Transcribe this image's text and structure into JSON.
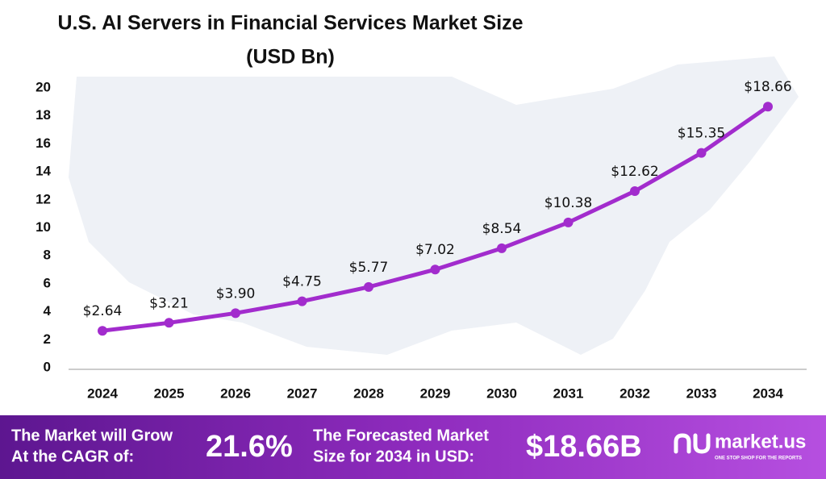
{
  "chart_data": {
    "type": "line",
    "title": "U.S. AI Servers in Financial Services Market Size",
    "subtitle": "(USD Bn)",
    "categories": [
      "2024",
      "2025",
      "2026",
      "2027",
      "2028",
      "2029",
      "2030",
      "2031",
      "2032",
      "2033",
      "2034"
    ],
    "values": [
      2.64,
      3.21,
      3.9,
      4.75,
      5.77,
      7.02,
      8.54,
      10.38,
      12.62,
      15.35,
      18.66
    ],
    "value_labels": [
      "$2.64",
      "$3.21",
      "$3.90",
      "$4.75",
      "$5.77",
      "$7.02",
      "$8.54",
      "$10.38",
      "$12.62",
      "$15.35",
      "$18.66"
    ],
    "color": "#a22ccd",
    "ylim": [
      0,
      20
    ],
    "yticks": [
      0,
      2,
      4,
      6,
      8,
      10,
      12,
      14,
      16,
      18,
      20
    ],
    "grid": false
  },
  "footer": {
    "cagr_text": [
      "The Market will Grow",
      "At the CAGR of:"
    ],
    "cagr": "21.6%",
    "forecast_text": [
      "The Forecasted Market",
      "Size for 2034 in USD:"
    ],
    "forecast": "$18.66B",
    "brand": "market.us",
    "tagline": "ONE STOP SHOP FOR THE REPORTS"
  }
}
